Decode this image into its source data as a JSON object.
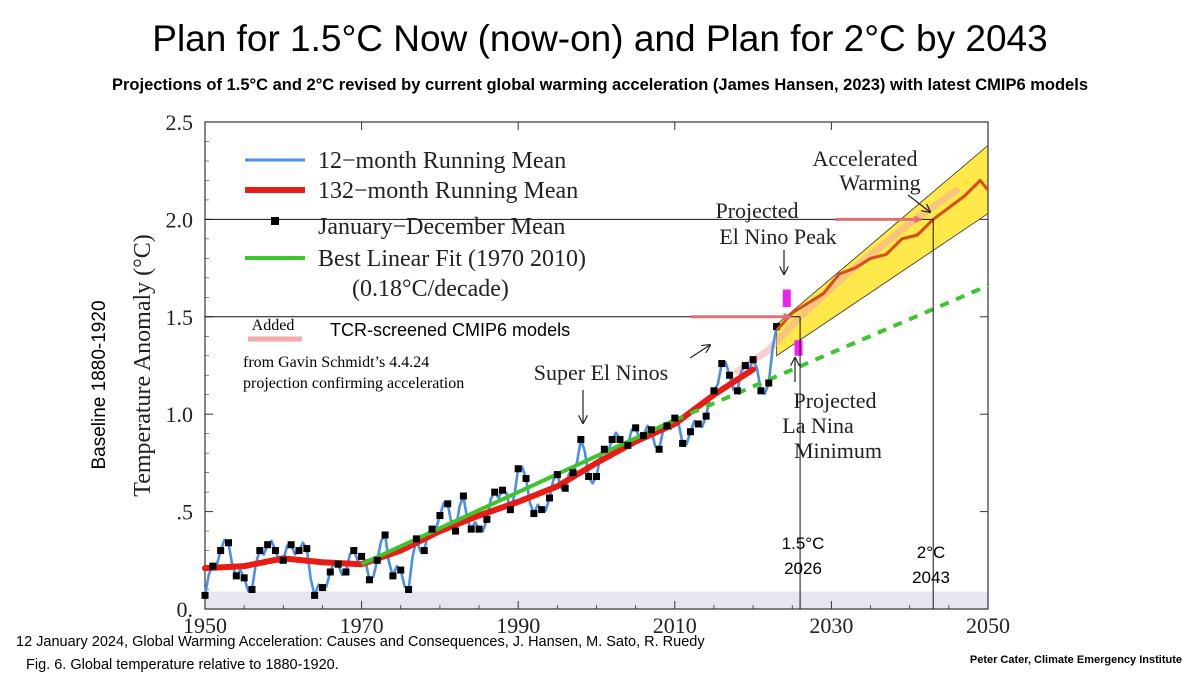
{
  "page": {
    "title": "Plan for 1.5°C  Now (now-on) and  Plan for 2°C  by 2043",
    "subtitle": "Projections of 1.5°C and 2°C revised by current global warming acceleration (James Hansen, 2023) with latest CMIP6 models",
    "side_ylabel": "Baseline 1880-1920",
    "citation": "12 January 2024, Global Warming Acceleration: Causes and Consequences, J. Hansen, M. Sato, R. Ruedy",
    "figure_caption": "Fig. 6. Global temperature relative to 1880-1920.",
    "credit": "Peter Cater, Climate Emergency Institute"
  },
  "colors": {
    "mean12": "#4a8fe8",
    "mean132": "#e81c14",
    "fit": "#3cc52c",
    "projection_fill": "#ffe84a",
    "accel_line": "#d94a1c",
    "el_nino": "#ee22ee",
    "arrow_pink": "#e07070",
    "cmip6": "#f4a8a8"
  },
  "chart_data": {
    "type": "line",
    "title": "Global temperature relative to 1880-1920",
    "xlabel": "",
    "ylabel": "Temperature Anomaly (°C)",
    "xlim": [
      1950,
      2050
    ],
    "ylim": [
      0,
      2.5
    ],
    "xticks": [
      "1950",
      "1970",
      "1990",
      "2010",
      "2030",
      "2050"
    ],
    "yticks": [
      "0.",
      ".5",
      "1.0",
      "1.5",
      "2.0",
      "2.5"
    ],
    "legend": [
      "12−month Running Mean",
      "132−month Running Mean",
      "January−December Mean",
      "Best Linear Fit (1970  2010)",
      "(0.18°C/decade)"
    ],
    "series": [
      {
        "name": "January−December Mean",
        "x": [
          1950,
          1951,
          1952,
          1953,
          1954,
          1955,
          1956,
          1957,
          1958,
          1959,
          1960,
          1961,
          1962,
          1963,
          1964,
          1965,
          1966,
          1967,
          1968,
          1969,
          1970,
          1971,
          1972,
          1973,
          1974,
          1975,
          1976,
          1977,
          1978,
          1979,
          1980,
          1981,
          1982,
          1983,
          1984,
          1985,
          1986,
          1987,
          1988,
          1989,
          1990,
          1991,
          1992,
          1993,
          1994,
          1995,
          1996,
          1997,
          1998,
          1999,
          2000,
          2001,
          2002,
          2003,
          2004,
          2005,
          2006,
          2007,
          2008,
          2009,
          2010,
          2011,
          2012,
          2013,
          2014,
          2015,
          2016,
          2017,
          2018,
          2019,
          2020,
          2021,
          2022,
          2023
        ],
        "values": [
          0.07,
          0.22,
          0.3,
          0.34,
          0.17,
          0.16,
          0.1,
          0.3,
          0.33,
          0.3,
          0.25,
          0.33,
          0.3,
          0.31,
          0.07,
          0.11,
          0.19,
          0.23,
          0.19,
          0.3,
          0.27,
          0.15,
          0.25,
          0.38,
          0.17,
          0.2,
          0.1,
          0.36,
          0.3,
          0.41,
          0.48,
          0.54,
          0.4,
          0.58,
          0.41,
          0.41,
          0.46,
          0.6,
          0.61,
          0.51,
          0.72,
          0.67,
          0.49,
          0.51,
          0.57,
          0.69,
          0.62,
          0.7,
          0.87,
          0.68,
          0.68,
          0.82,
          0.87,
          0.87,
          0.84,
          0.93,
          0.89,
          0.92,
          0.82,
          0.94,
          0.98,
          0.85,
          0.91,
          0.95,
          0.99,
          1.12,
          1.26,
          1.2,
          1.12,
          1.25,
          1.28,
          1.12,
          1.16,
          1.45
        ]
      },
      {
        "name": "132−month Running Mean",
        "x": [
          1950,
          1955,
          1960,
          1965,
          1970,
          1975,
          1980,
          1985,
          1990,
          1995,
          2000,
          2005,
          2010,
          2015,
          2020
        ],
        "values": [
          0.21,
          0.22,
          0.26,
          0.24,
          0.23,
          0.3,
          0.4,
          0.48,
          0.55,
          0.63,
          0.75,
          0.86,
          0.95,
          1.1,
          1.23
        ]
      },
      {
        "name": "Best Linear Fit (1970 2010)",
        "x": [
          1970,
          2010
        ],
        "values": [
          0.23,
          0.97
        ]
      },
      {
        "name": "Linear fit extrapolation",
        "x": [
          2010,
          2050
        ],
        "values": [
          0.97,
          1.66
        ]
      },
      {
        "name": "Accelerated Warming",
        "x": [
          2023,
          2025,
          2027,
          2029,
          2031,
          2033,
          2035,
          2037,
          2039,
          2041,
          2043,
          2045,
          2047,
          2049,
          2050
        ],
        "values": [
          1.43,
          1.52,
          1.57,
          1.62,
          1.72,
          1.75,
          1.8,
          1.82,
          1.9,
          1.92,
          2.0,
          2.06,
          2.12,
          2.2,
          2.15
        ]
      }
    ],
    "projection_band": {
      "x": [
        2023,
        2050
      ],
      "upper": [
        1.46,
        2.38
      ],
      "lower": [
        1.3,
        2.03
      ]
    },
    "thresholds": [
      {
        "value": 1.5,
        "year": 2026,
        "label_degree": "1.5°C",
        "label_year": "2026"
      },
      {
        "value": 2.0,
        "year": 2043,
        "label_degree": "2°C",
        "label_year": "2043"
      }
    ],
    "markers": [
      {
        "name": "Projected El Nino Peak",
        "x": 2024.3,
        "y_range": [
          1.55,
          1.64
        ]
      },
      {
        "name": "Projected La Nina Minimum",
        "x": 2025.8,
        "y_range": [
          1.3,
          1.38
        ]
      }
    ],
    "annotations": {
      "accelerated": [
        "Accelerated",
        "Warming"
      ],
      "el_nino": [
        "Projected",
        "El Nino Peak"
      ],
      "la_nina": [
        "Projected",
        "La Nina",
        "Minimum"
      ],
      "super_el_ninos": "Super El Ninos",
      "added_badge": "Added",
      "cmip6": "TCR-screened CMIP6 models",
      "schmidt_line1": "from Gavin Schmidt’s 4.4.24",
      "schmidt_line2": "projection confirming acceleration"
    }
  }
}
